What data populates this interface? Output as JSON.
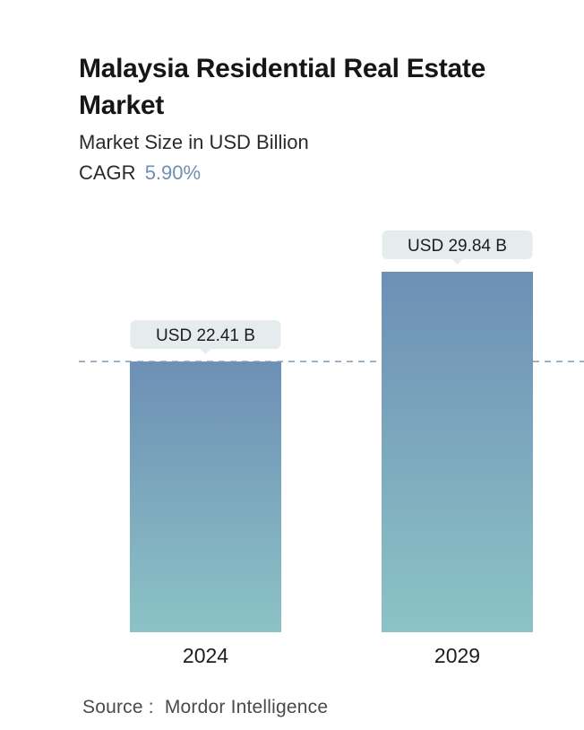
{
  "header": {
    "title": "Malaysia Residential Real Estate Market",
    "subtitle": "Market Size in USD Billion",
    "cagr_label": "CAGR",
    "cagr_value": "5.90%"
  },
  "chart_data": {
    "type": "bar",
    "title": "Malaysia Residential Real Estate Market",
    "subtitle": "Market Size in USD Billion",
    "categories": [
      "2024",
      "2029"
    ],
    "values": [
      22.41,
      29.84
    ],
    "value_labels": [
      "USD 22.41 B",
      "USD 29.84 B"
    ],
    "unit": "USD Billion",
    "reference_line": 22.41,
    "ylim": [
      0,
      30
    ],
    "grid": false,
    "xlabel": "",
    "ylabel": ""
  },
  "footer": {
    "source_label": "Source :",
    "source_name": "Mordor Intelligence"
  },
  "colors": {
    "bar_top": "#6d8fb5",
    "bar_bottom": "#8cc3c6",
    "label_bg": "#e6ecee",
    "dashed_line": "#7c9bb5",
    "cagr_accent": "#6f8fb2"
  }
}
